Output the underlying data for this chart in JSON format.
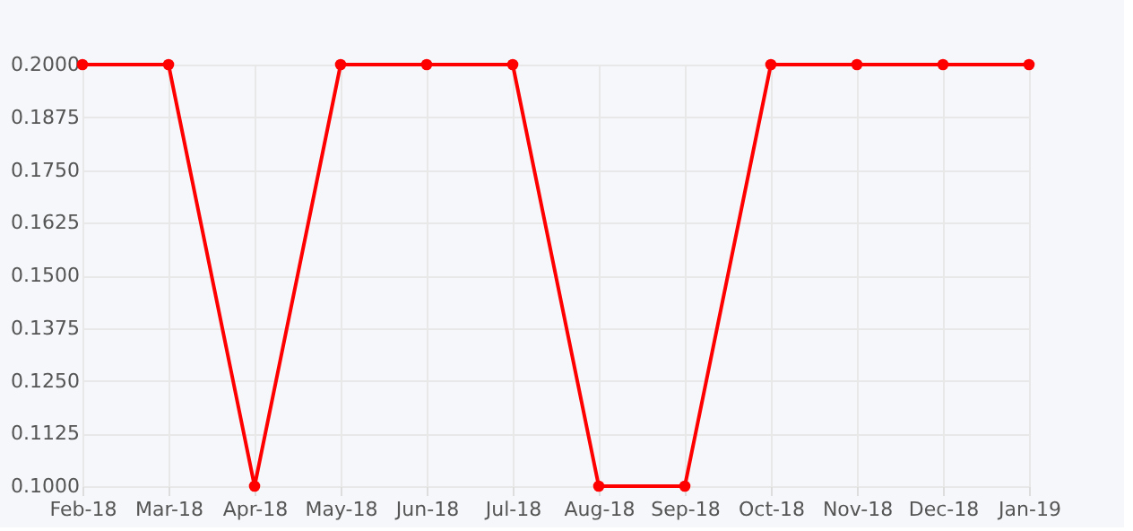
{
  "chart_data": {
    "type": "line",
    "categories": [
      "Feb-18",
      "Mar-18",
      "Apr-18",
      "May-18",
      "Jun-18",
      "Jul-18",
      "Aug-18",
      "Sep-18",
      "Oct-18",
      "Nov-18",
      "Dec-18",
      "Jan-19"
    ],
    "series": [
      {
        "color": "#ff0000",
        "values": [
          0.2,
          0.2,
          0.1,
          0.2,
          0.2,
          0.2,
          0.1,
          0.1,
          0.2,
          0.2,
          0.2,
          0.2
        ]
      }
    ],
    "ylim": [
      0.1,
      0.2
    ],
    "yticks": [
      {
        "value": 0.1,
        "label": "0.1000"
      },
      {
        "value": 0.1125,
        "label": "0.1125"
      },
      {
        "value": 0.125,
        "label": "0.1250"
      },
      {
        "value": 0.1375,
        "label": "0.1375"
      },
      {
        "value": 0.15,
        "label": "0.1500"
      },
      {
        "value": 0.1625,
        "label": "0.1625"
      },
      {
        "value": 0.175,
        "label": "0.1750"
      },
      {
        "value": 0.1875,
        "label": "0.1875"
      },
      {
        "value": 0.2,
        "label": "0.2000"
      }
    ],
    "grid": true,
    "marker": "circle",
    "line_style": "solid"
  }
}
